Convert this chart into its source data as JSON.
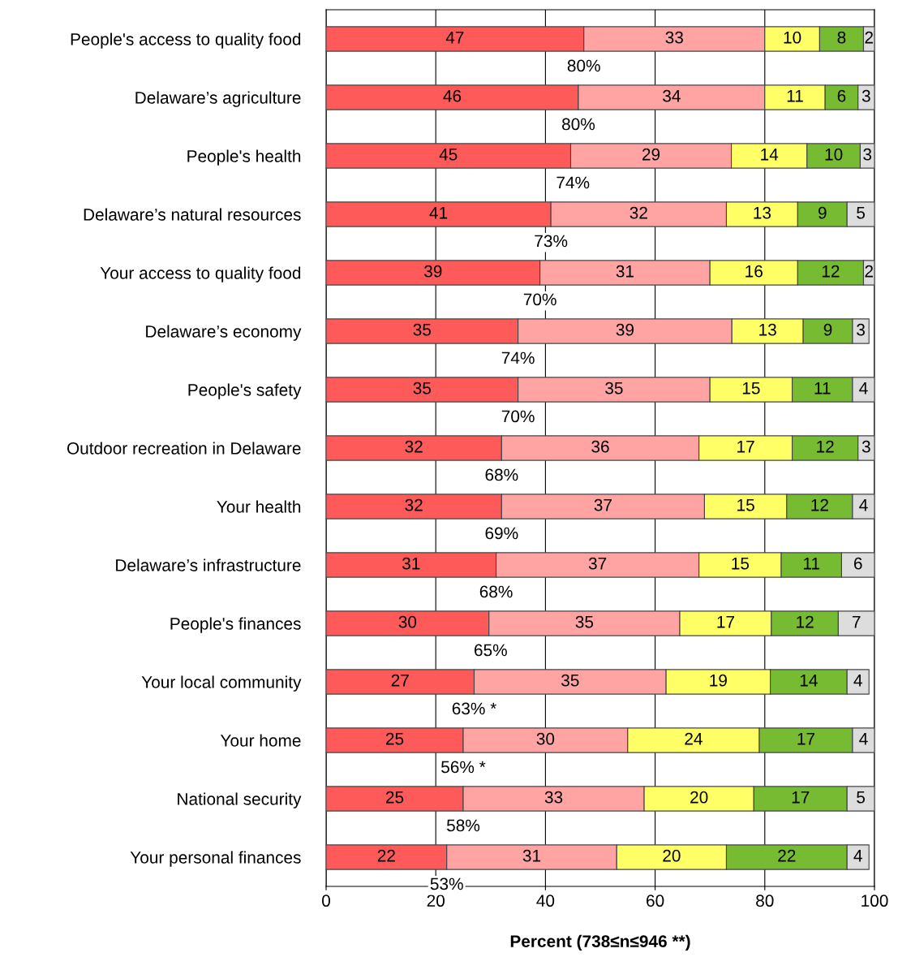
{
  "chart_data": {
    "type": "bar",
    "orientation": "horizontal",
    "stacked": true,
    "xlabel": "Percent (738≤n≤946 **)",
    "categories": [
      "People's access to quality food",
      "Delaware’s agriculture",
      "People's health",
      "Delaware’s natural resources",
      "Your access to quality food",
      "Delaware’s economy",
      "People's safety",
      "Outdoor recreation in Delaware",
      "Your health",
      "Delaware’s infrastructure",
      "People's finances",
      "Your local community",
      "Your home",
      "National security",
      "Your personal finances"
    ],
    "series": [
      {
        "color": "#ff5a5a",
        "values": [
          47,
          46,
          44.6,
          41,
          39,
          35,
          35,
          32,
          32,
          31,
          29.7,
          27,
          25,
          25,
          22
        ],
        "value_labels": [
          "47",
          "46",
          "45",
          "41",
          "39",
          "35",
          "35",
          "32",
          "32",
          "31",
          "30",
          "27",
          "25",
          "25",
          "22"
        ]
      },
      {
        "color": "#ffa3a3",
        "values": [
          33,
          34,
          29.3,
          32,
          31,
          39,
          35,
          36,
          37,
          37,
          34.8,
          35,
          30,
          33,
          31
        ],
        "value_labels": [
          "33",
          "34",
          "29",
          "32",
          "31",
          "39",
          "35",
          "36",
          "37",
          "37",
          "35",
          "35",
          "30",
          "33",
          "31"
        ]
      },
      {
        "color": "#ffff66",
        "values": [
          10,
          11,
          13.8,
          13,
          16,
          13,
          15,
          17,
          15,
          15,
          16.7,
          19,
          24,
          20,
          20
        ],
        "value_labels": [
          "10",
          "11",
          "14",
          "13",
          "16",
          "13",
          "15",
          "17",
          "15",
          "15",
          "17",
          "19",
          "24",
          "20",
          "20"
        ]
      },
      {
        "color": "#77bb33",
        "values": [
          8,
          6,
          9.7,
          9,
          12,
          9,
          11,
          12,
          12,
          11,
          12.2,
          14,
          17,
          17,
          22
        ],
        "value_labels": [
          "8",
          "6",
          "10",
          "9",
          "12",
          "9",
          "11",
          "12",
          "12",
          "11",
          "12",
          "14",
          "17",
          "17",
          "22"
        ]
      },
      {
        "color": "#dddddd",
        "values": [
          2,
          3,
          2.6,
          5,
          2,
          3,
          4,
          3,
          4,
          6,
          6.6,
          4,
          4,
          5,
          4
        ],
        "value_labels": [
          "2",
          "3",
          "3",
          "5",
          "2",
          "3",
          "4",
          "3",
          "4",
          "6",
          "7",
          "4",
          "4",
          "5",
          "4"
        ]
      }
    ],
    "xlim": [
      0,
      100
    ],
    "xticks": [
      0,
      20,
      40,
      60,
      80,
      100
    ],
    "grid": "x",
    "legend": false,
    "annotations": [
      {
        "text": "80%",
        "x": 47,
        "y": "People's access to quality food"
      },
      {
        "text": "80%",
        "x": 46,
        "y": "Delaware’s agriculture"
      },
      {
        "text": "74%",
        "x": 45,
        "y": "People's health"
      },
      {
        "text": "73%",
        "x": 41,
        "y": "Delaware’s natural resources"
      },
      {
        "text": "70%",
        "x": 39,
        "y": "Your access to quality food"
      },
      {
        "text": "74%",
        "x": 35,
        "y": "Delaware’s economy"
      },
      {
        "text": "70%",
        "x": 35,
        "y": "People's safety"
      },
      {
        "text": "68%",
        "x": 32,
        "y": "Outdoor recreation in Delaware"
      },
      {
        "text": "69%",
        "x": 32,
        "y": "Your health"
      },
      {
        "text": "68%",
        "x": 31,
        "y": "Delaware’s infrastructure"
      },
      {
        "text": "65%",
        "x": 30,
        "y": "People's finances"
      },
      {
        "text": "63% *",
        "x": 27,
        "y": "Your local community"
      },
      {
        "text": "56% *",
        "x": 25,
        "y": "Your home"
      },
      {
        "text": "58%",
        "x": 25,
        "y": "National security"
      },
      {
        "text": "53%",
        "x": 22,
        "y": "Your personal finances"
      }
    ]
  }
}
